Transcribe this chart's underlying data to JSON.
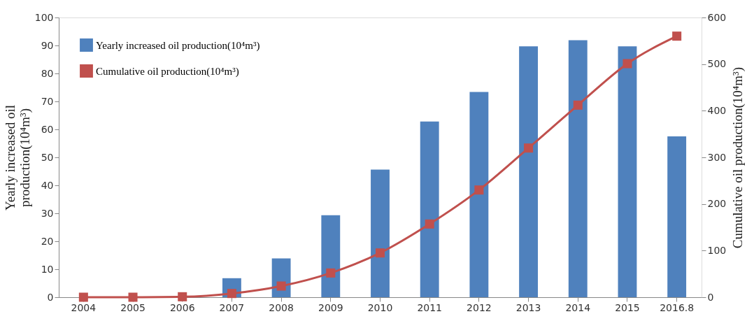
{
  "chart_data": {
    "type": "bar",
    "categories": [
      "2004",
      "2005",
      "2006",
      "2007",
      "2008",
      "2009",
      "2010",
      "2011",
      "2012",
      "2013",
      "2014",
      "2015",
      "2016.8"
    ],
    "ylabel": "Yearly increased oil production(10⁴m³)",
    "y2label": "Cumulative oil production(10⁴m³)",
    "series": [
      {
        "name": "Yearly increased oil production(10⁴m³)",
        "color": "#4f81bd",
        "values": [
          0,
          0,
          0,
          6.8,
          13.9,
          29.3,
          45.6,
          62.8,
          73.4,
          89.7,
          91.9,
          89.7,
          57.5
        ]
      },
      {
        "name": "Cumulative oil production(10⁴m³)",
        "type": "line",
        "axis": "y2",
        "color": "#c0504d",
        "marker": "square",
        "values": [
          0,
          0,
          1,
          8,
          24,
          52,
          95,
          157,
          230,
          320,
          412,
          501,
          560
        ]
      }
    ],
    "ylim": [
      0,
      100
    ],
    "yticks": [
      0,
      10,
      20,
      30,
      40,
      50,
      60,
      70,
      80,
      90,
      100
    ],
    "y2lim": [
      0,
      600
    ],
    "y2ticks": [
      0,
      100,
      200,
      300,
      400,
      500,
      600
    ],
    "grid": false,
    "legend": "top left"
  }
}
